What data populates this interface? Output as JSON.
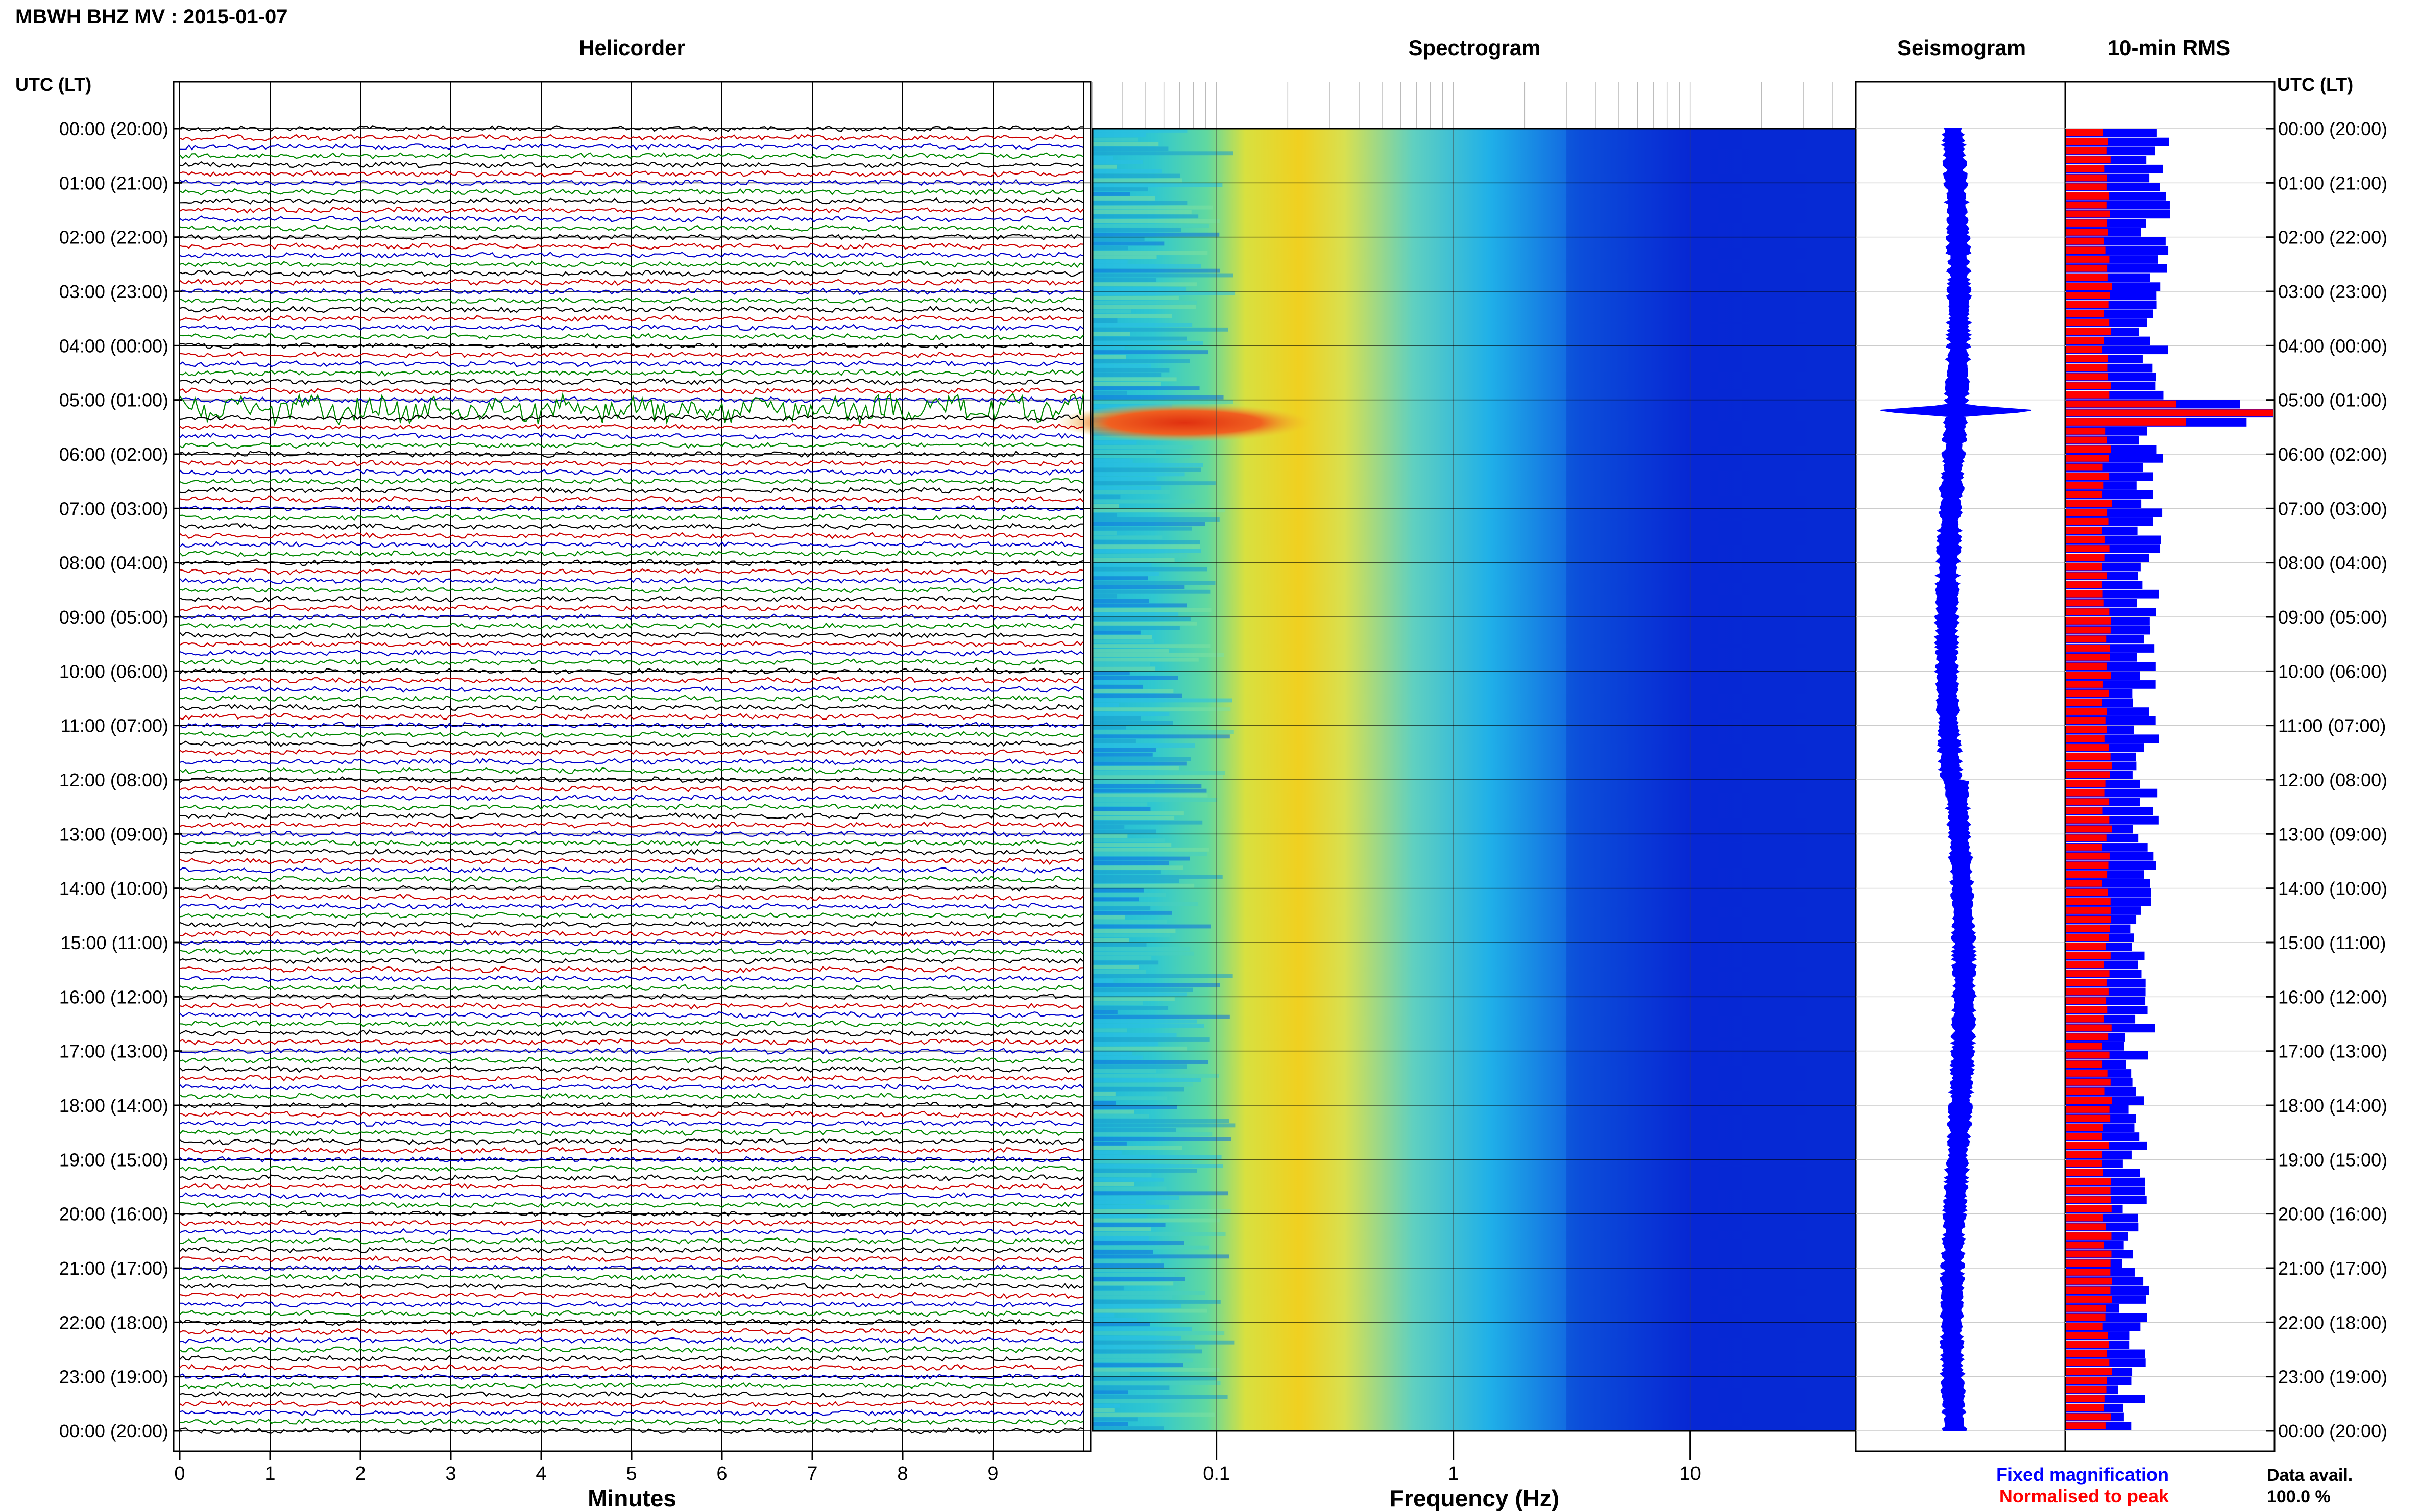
{
  "title": "MBWH BHZ MV : 2015-01-07",
  "header": {
    "utc_lt": "UTC (LT)",
    "utc_lt_right": "UTC (LT)"
  },
  "panels": {
    "helicorder": "Helicorder",
    "spectrogram": "Spectrogram",
    "seismogram": "Seismogram",
    "rms": "10-min RMS"
  },
  "axes": {
    "helicorder_xlabel": "Minutes",
    "spectrogram_xlabel": "Frequency (Hz)"
  },
  "legend": {
    "fixed": "Fixed magnification",
    "normalised": "Normalised to peak",
    "fixed_color": "#0000ff",
    "normalised_color": "#ff0000"
  },
  "data_avail": {
    "label": "Data avail.",
    "value": "100.0 %"
  },
  "colors": {
    "trace_colors": [
      "#000000",
      "#cc0000",
      "#0000cc",
      "#008800"
    ],
    "rms_fixed": "#0000ff",
    "rms_normalised": "#ff0000",
    "seismogram": "#0000ff"
  },
  "chart_data": [
    {
      "type": "line",
      "panel": "Helicorder",
      "title": "Helicorder",
      "xlabel": "Minutes",
      "x_ticks": [
        "0",
        "1",
        "2",
        "3",
        "4",
        "5",
        "6",
        "7",
        "8",
        "9"
      ],
      "xlim": [
        0,
        10
      ],
      "y_tick_labels": [
        "00:00 (20:00)",
        "01:00 (21:00)",
        "02:00 (22:00)",
        "03:00 (23:00)",
        "04:00 (00:00)",
        "05:00 (01:00)",
        "06:00 (02:00)",
        "07:00 (03:00)",
        "08:00 (04:00)",
        "09:00 (05:00)",
        "10:00 (06:00)",
        "11:00 (07:00)",
        "12:00 (08:00)",
        "13:00 (09:00)",
        "14:00 (10:00)",
        "15:00 (11:00)",
        "16:00 (12:00)",
        "17:00 (13:00)",
        "18:00 (14:00)",
        "19:00 (15:00)",
        "20:00 (16:00)",
        "21:00 (17:00)",
        "22:00 (18:00)",
        "23:00 (19:00)",
        "00:00 (20:00)"
      ],
      "traces_per_hour": 6,
      "event_hour": 5.2
    },
    {
      "type": "heatmap",
      "panel": "Spectrogram",
      "title": "Spectrogram",
      "xlabel": "Frequency (Hz)",
      "x_scale": "log",
      "x_ticks": [
        "0.1",
        "1",
        "10"
      ],
      "xlim": [
        0.03,
        50
      ],
      "event_hour": 5.2
    },
    {
      "type": "line",
      "panel": "Seismogram",
      "title": "Seismogram",
      "event_hour": 5.2
    },
    {
      "type": "bar",
      "panel": "10-min RMS",
      "title": "10-min RMS",
      "series": [
        {
          "name": "Fixed magnification",
          "color": "#0000ff"
        },
        {
          "name": "Normalised to peak",
          "color": "#ff0000"
        }
      ],
      "event_hour": 5.2
    }
  ]
}
